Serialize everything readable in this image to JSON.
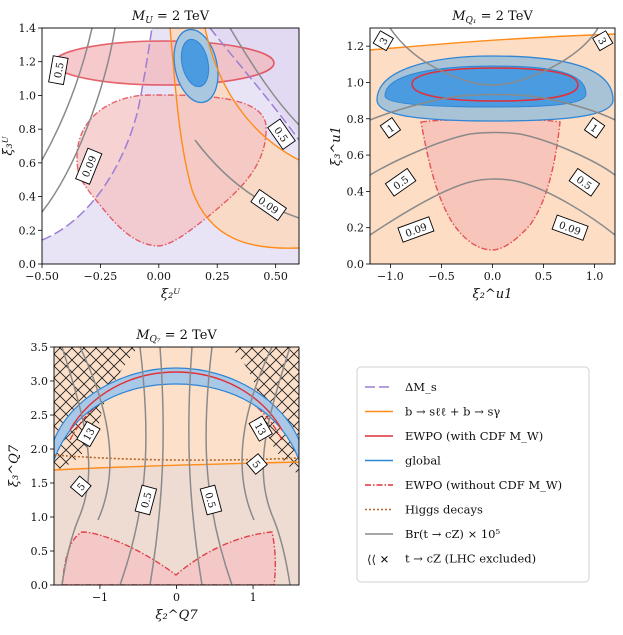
{
  "colors": {
    "delta_ms": "#9b7fd4",
    "bsll": "#ff8c1a",
    "ewpo_cdf": "#e0303a",
    "global": "#2e86d6",
    "ewpo_nocdf": "#e0303a",
    "higgs": "#b5652a",
    "brtcz": "#8a8a8a",
    "hatch": "#000000"
  },
  "chart_data": [
    {
      "id": "MU",
      "type": "contour",
      "title": "M_U = 2 TeV",
      "xlabel": "ξ₂ᵁ",
      "ylabel": "ξ₃ᵁ",
      "xlim": [
        -0.5,
        0.6
      ],
      "ylim": [
        0.0,
        1.4
      ],
      "xticks": [
        "−0.50",
        "−0.25",
        "0.00",
        "0.25",
        "0.50"
      ],
      "xtick_values": [
        -0.5,
        -0.25,
        0.0,
        0.25,
        0.5
      ],
      "yticks": [
        "0.0",
        "0.2",
        "0.4",
        "0.6",
        "0.8",
        "1.0",
        "1.2",
        "1.4"
      ],
      "ytick_values": [
        0,
        0.2,
        0.4,
        0.6,
        0.8,
        1.0,
        1.2,
        1.4
      ],
      "contour_labels": [
        {
          "text": "0.5",
          "x": -0.43,
          "y": 1.15,
          "angle": -80
        },
        {
          "text": "0.09",
          "x": -0.3,
          "y": 0.58,
          "angle": -68
        },
        {
          "text": "0.5",
          "x": 0.525,
          "y": 0.77,
          "angle": 55
        },
        {
          "text": "0.09",
          "x": 0.47,
          "y": 0.35,
          "angle": 35
        }
      ]
    },
    {
      "id": "MQ1",
      "type": "contour",
      "title": "M_Q1 = 2 TeV",
      "xlabel": "ξ₂^u1",
      "ylabel": "ξ₃^u1",
      "xlim": [
        -1.2,
        1.2
      ],
      "ylim": [
        0.0,
        1.3
      ],
      "xticks": [
        "−1.0",
        "−0.5",
        "0.0",
        "0.5",
        "1.0"
      ],
      "xtick_values": [
        -1.0,
        -0.5,
        0.0,
        0.5,
        1.0
      ],
      "yticks": [
        "0.0",
        "0.2",
        "0.4",
        "0.6",
        "0.8",
        "1.0",
        "1.2"
      ],
      "ytick_values": [
        0,
        0.2,
        0.4,
        0.6,
        0.8,
        1.0,
        1.2
      ],
      "contour_labels": [
        {
          "text": "3",
          "x": -1.07,
          "y": 1.23,
          "angle": -60
        },
        {
          "text": "1",
          "x": -1.0,
          "y": 0.75,
          "angle": -35
        },
        {
          "text": "0.5",
          "x": -0.9,
          "y": 0.45,
          "angle": -35
        },
        {
          "text": "0.09",
          "x": -0.75,
          "y": 0.19,
          "angle": -20
        },
        {
          "text": "3",
          "x": 1.08,
          "y": 1.23,
          "angle": 60
        },
        {
          "text": "1",
          "x": 1.0,
          "y": 0.75,
          "angle": 35
        },
        {
          "text": "0.5",
          "x": 0.9,
          "y": 0.45,
          "angle": 35
        },
        {
          "text": "0.09",
          "x": 0.76,
          "y": 0.2,
          "angle": 20
        }
      ]
    },
    {
      "id": "MQ7",
      "type": "contour",
      "title": "M_Q7 = 2 TeV",
      "xlabel": "ξ₂^Q7",
      "ylabel": "ξ₃^Q7",
      "xlim": [
        -1.6,
        1.6
      ],
      "ylim": [
        0.0,
        3.5
      ],
      "xticks": [
        "−1",
        "0",
        "1"
      ],
      "xtick_values": [
        -1,
        0,
        1
      ],
      "yticks": [
        "0.0",
        "0.5",
        "1.0",
        "1.5",
        "2.0",
        "2.5",
        "3.0",
        "3.5"
      ],
      "ytick_values": [
        0,
        0.5,
        1.0,
        1.5,
        2.0,
        2.5,
        3.0,
        3.5
      ],
      "contour_labels": [
        {
          "text": "13",
          "x": -1.15,
          "y": 2.22,
          "angle": -60
        },
        {
          "text": "5",
          "x": -1.25,
          "y": 1.45,
          "angle": -50
        },
        {
          "text": "0.5",
          "x": -0.4,
          "y": 1.25,
          "angle": -75
        },
        {
          "text": "13",
          "x": 1.1,
          "y": 2.3,
          "angle": 60
        },
        {
          "text": "5",
          "x": 1.05,
          "y": 1.78,
          "angle": 50
        },
        {
          "text": "0.5",
          "x": 0.45,
          "y": 1.25,
          "angle": 75
        }
      ]
    }
  ],
  "legend": [
    {
      "key": "delta_ms",
      "label": "ΔM_s"
    },
    {
      "key": "bsll",
      "label": "b → sℓℓ + b → sγ"
    },
    {
      "key": "ewpo_cdf",
      "label": "EWPO (with CDF M_W)"
    },
    {
      "key": "global",
      "label": "global"
    },
    {
      "key": "ewpo_nocdf",
      "label": "EWPO (without CDF M_W)"
    },
    {
      "key": "higgs",
      "label": "Higgs decays"
    },
    {
      "key": "brtcz",
      "label": "Br(t → cZ) × 10⁵"
    },
    {
      "key": "hatch",
      "label": "t → cZ (LHC excluded)"
    }
  ]
}
